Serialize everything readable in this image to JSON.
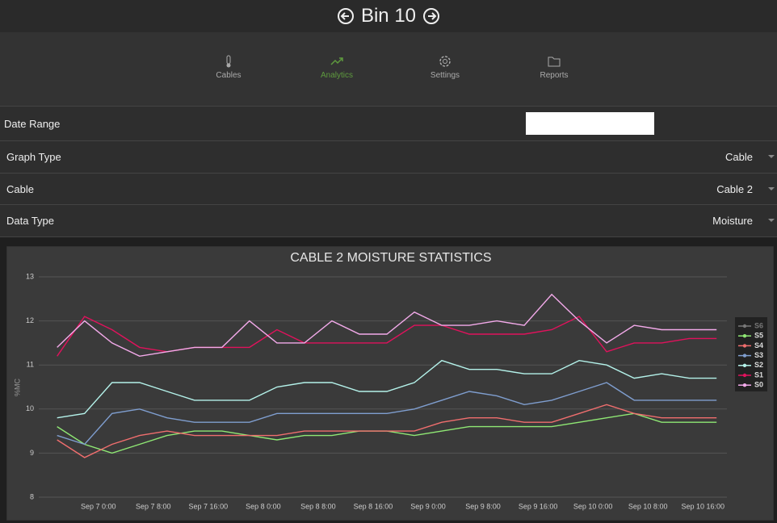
{
  "header": {
    "title": "Bin 10"
  },
  "nav": [
    {
      "label": "Cables"
    },
    {
      "label": "Analytics",
      "active": true
    },
    {
      "label": "Settings"
    },
    {
      "label": "Reports"
    }
  ],
  "form": [
    {
      "label": "Date Range"
    },
    {
      "label": "Graph Type",
      "value": "Cable"
    },
    {
      "label": "Cable",
      "value": "Cable 2"
    },
    {
      "label": "Data Type",
      "value": "Moisture"
    }
  ],
  "chart_data": {
    "type": "line",
    "title": "CABLE 2 MOISTURE STATISTICS",
    "y_label": "%MC",
    "x": [
      "Sep 6 18:00",
      "Sep 6 22:00",
      "Sep 7 2:00",
      "Sep 7 6:00",
      "Sep 7 10:00",
      "Sep 7 14:00",
      "Sep 7 18:00",
      "Sep 7 22:00",
      "Sep 8 2:00",
      "Sep 8 6:00",
      "Sep 8 10:00",
      "Sep 8 14:00",
      "Sep 8 18:00",
      "Sep 8 22:00",
      "Sep 9 2:00",
      "Sep 9 6:00",
      "Sep 9 10:00",
      "Sep 9 14:00",
      "Sep 9 18:00",
      "Sep 9 22:00",
      "Sep 10 2:00",
      "Sep 10 6:00",
      "Sep 10 10:00",
      "Sep 10 14:00",
      "Sep 10 18:00"
    ],
    "series": [
      {
        "name": "S6",
        "color": "#777777",
        "values": [
          null,
          null,
          null,
          null,
          null,
          null,
          null,
          null,
          null,
          null,
          null,
          null,
          null,
          null,
          null,
          null,
          null,
          null,
          null,
          null,
          null,
          null,
          null,
          null,
          null
        ]
      },
      {
        "name": "S5",
        "color": "#8fe874",
        "values": [
          9.6,
          9.2,
          9.0,
          9.2,
          9.4,
          9.5,
          9.5,
          9.4,
          9.3,
          9.4,
          9.4,
          9.5,
          9.5,
          9.4,
          9.5,
          9.6,
          9.6,
          9.6,
          9.6,
          9.7,
          9.8,
          9.9,
          9.7,
          9.7,
          9.7
        ]
      },
      {
        "name": "S4",
        "color": "#f06e6e",
        "values": [
          9.3,
          8.9,
          9.2,
          9.4,
          9.5,
          9.4,
          9.4,
          9.4,
          9.4,
          9.5,
          9.5,
          9.5,
          9.5,
          9.5,
          9.7,
          9.8,
          9.8,
          9.7,
          9.7,
          9.9,
          10.1,
          9.9,
          9.8,
          9.8,
          9.8
        ]
      },
      {
        "name": "S3",
        "color": "#7f9ecf",
        "values": [
          9.4,
          9.2,
          9.9,
          10.0,
          9.8,
          9.7,
          9.7,
          9.7,
          9.9,
          9.9,
          9.9,
          9.9,
          9.9,
          10.0,
          10.2,
          10.4,
          10.3,
          10.1,
          10.2,
          10.4,
          10.6,
          10.2,
          10.2,
          10.2,
          10.2
        ]
      },
      {
        "name": "S2",
        "color": "#b4f2ea",
        "values": [
          9.8,
          9.9,
          10.6,
          10.6,
          10.4,
          10.2,
          10.2,
          10.2,
          10.5,
          10.6,
          10.6,
          10.4,
          10.4,
          10.6,
          11.1,
          10.9,
          10.9,
          10.8,
          10.8,
          11.1,
          11.0,
          10.7,
          10.8,
          10.7,
          10.7
        ]
      },
      {
        "name": "S1",
        "color": "#e0125c",
        "values": [
          11.2,
          12.1,
          11.8,
          11.4,
          11.3,
          11.4,
          11.4,
          11.4,
          11.8,
          11.5,
          11.5,
          11.5,
          11.5,
          11.9,
          11.9,
          11.7,
          11.7,
          11.7,
          11.8,
          12.1,
          11.3,
          11.5,
          11.5,
          11.6,
          11.6
        ]
      },
      {
        "name": "S0",
        "color": "#f3aaea",
        "values": [
          11.4,
          12.0,
          11.5,
          11.2,
          11.3,
          11.4,
          11.4,
          12.0,
          11.5,
          11.5,
          12.0,
          11.7,
          11.7,
          12.2,
          11.9,
          11.9,
          12.0,
          11.9,
          12.6,
          12.0,
          11.5,
          11.9,
          11.8,
          11.8,
          11.8
        ]
      }
    ],
    "xlim": [
      "Sep 6 15:20",
      "Sep 10 19:30"
    ],
    "xticks": [
      "Sep 7 0:00",
      "Sep 7 8:00",
      "Sep 7 16:00",
      "Sep 8 0:00",
      "Sep 8 8:00",
      "Sep 8 16:00",
      "Sep 9 0:00",
      "Sep 9 8:00",
      "Sep 9 16:00",
      "Sep 10 0:00",
      "Sep 10 8:00",
      "Sep 10 16:00"
    ],
    "ylim": [
      8,
      13
    ],
    "yticks": [
      8,
      9,
      10,
      11,
      12,
      13
    ],
    "grid": true,
    "legend": "right"
  }
}
